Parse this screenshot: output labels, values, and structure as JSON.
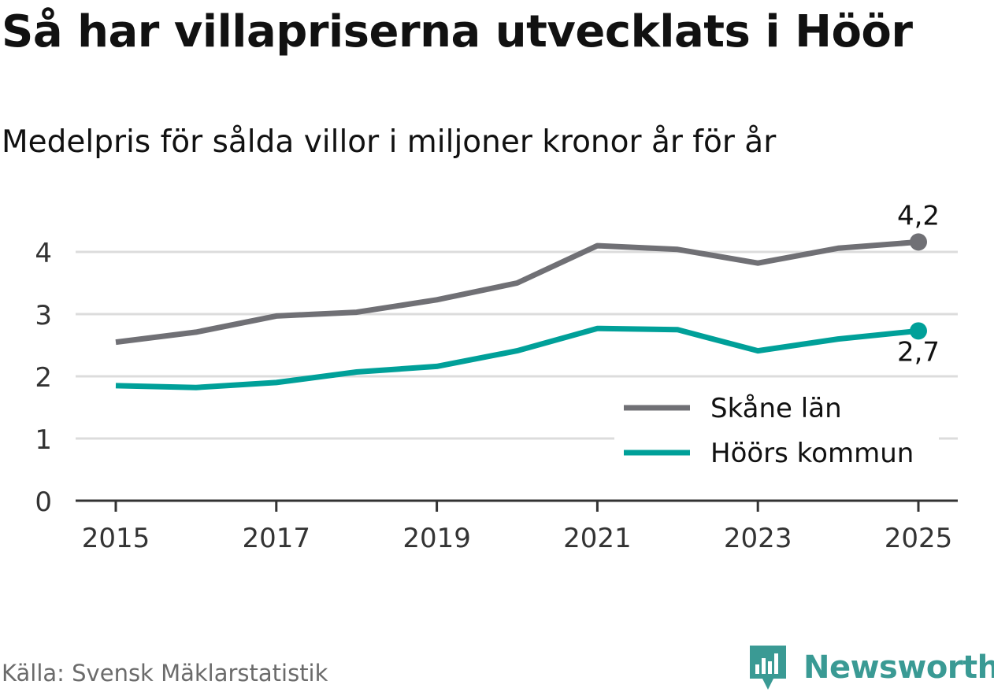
{
  "header": {
    "title": "Så har villapriserna utvecklats i Höör",
    "subtitle": "Medelpris för sålda villor i miljoner kronor år för år"
  },
  "footer": {
    "source": "Källa: Svensk Mäklarstatistik",
    "brand": "Newsworthy"
  },
  "colors": {
    "skane": "#707075",
    "hoor": "#00a099",
    "grid": "#dcdcdc",
    "axis": "#333333",
    "text": "#111111",
    "brand": "#3a9a94"
  },
  "chart_data": {
    "type": "line",
    "title": "Så har villapriserna utvecklats i Höör",
    "subtitle": "Medelpris för sålda villor i miljoner kronor år för år",
    "xlabel": "",
    "ylabel": "",
    "x": [
      2015,
      2016,
      2017,
      2018,
      2019,
      2020,
      2021,
      2022,
      2023,
      2024,
      2025
    ],
    "x_ticks": [
      "2015",
      "2017",
      "2019",
      "2021",
      "2023",
      "2025"
    ],
    "x_tick_values": [
      2015,
      2017,
      2019,
      2021,
      2023,
      2025
    ],
    "y_ticks": [
      "0",
      "1",
      "2",
      "3",
      "4"
    ],
    "y_tick_values": [
      0,
      1,
      2,
      3,
      4
    ],
    "xlim": [
      2014.5,
      2025.5
    ],
    "ylim": [
      0,
      4.5
    ],
    "grid": true,
    "legend_position": "bottom-right",
    "series": [
      {
        "name": "Skåne län",
        "values": [
          2.55,
          2.71,
          2.97,
          3.03,
          3.23,
          3.5,
          4.1,
          4.04,
          3.82,
          4.06,
          4.16
        ],
        "end_label": "4,2"
      },
      {
        "name": "Höörs kommun",
        "values": [
          1.85,
          1.82,
          1.9,
          2.07,
          2.16,
          2.41,
          2.77,
          2.75,
          2.41,
          2.6,
          2.73
        ],
        "end_label": "2,7"
      }
    ]
  }
}
